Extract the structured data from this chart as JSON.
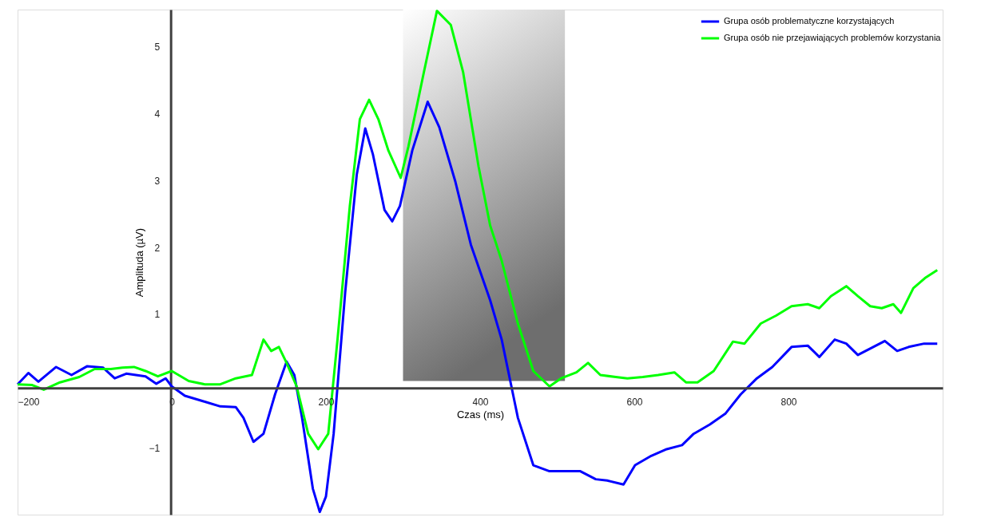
{
  "chart_data": {
    "type": "line",
    "xlabel": "Czas (ms)",
    "ylabel": "Amplituda (µV)",
    "xlim": [
      -200,
      1000
    ],
    "ylim": [
      -2.0,
      5.56
    ],
    "xticks": [
      -200,
      0,
      200,
      400,
      600,
      800
    ],
    "yticks": [
      -1,
      1,
      2,
      3,
      4,
      5
    ],
    "grid": false,
    "legend": "top right",
    "line_style": "solid",
    "marker": "none",
    "bands": [
      {
        "axis": "x",
        "from": 300,
        "to": 510,
        "color": "#6e6e6e"
      }
    ],
    "series": [
      {
        "name": "Grupa osób problematyczne korzystających",
        "color": "#0000ff",
        "x": [
          -200,
          -186,
          -173,
          -150,
          -130,
          -110,
          -89,
          -74,
          -59,
          -34,
          -20,
          -8,
          0,
          17,
          43,
          63,
          83,
          93,
          106,
          119,
          134,
          149,
          159,
          169,
          183,
          192,
          200,
          210,
          225,
          240,
          251,
          261,
          276,
          286,
          296,
          312,
          332,
          347,
          368,
          388,
          413,
          428,
          449,
          469,
          490,
          510,
          530,
          550,
          565,
          586,
          601,
          622,
          642,
          662,
          677,
          698,
          718,
          738,
          759,
          779,
          804,
          825,
          840,
          860,
          875,
          890,
          910,
          925,
          941,
          956,
          976,
          993
        ],
        "values": [
          -0.05,
          0.12,
          -0.01,
          0.21,
          0.09,
          0.22,
          0.2,
          0.04,
          0.11,
          0.07,
          -0.04,
          0.04,
          -0.08,
          -0.22,
          -0.31,
          -0.38,
          -0.39,
          -0.55,
          -0.91,
          -0.79,
          -0.2,
          0.29,
          0.09,
          -0.55,
          -1.61,
          -1.96,
          -1.73,
          -0.79,
          1.33,
          3.09,
          3.78,
          3.39,
          2.56,
          2.39,
          2.62,
          3.45,
          4.18,
          3.8,
          2.98,
          2.04,
          1.21,
          0.62,
          -0.55,
          -1.26,
          -1.35,
          -1.35,
          -1.35,
          -1.47,
          -1.49,
          -1.55,
          -1.26,
          -1.12,
          -1.02,
          -0.96,
          -0.79,
          -0.65,
          -0.49,
          -0.2,
          0.04,
          0.21,
          0.51,
          0.53,
          0.36,
          0.62,
          0.56,
          0.39,
          0.51,
          0.6,
          0.45,
          0.51,
          0.56,
          0.56
        ]
      },
      {
        "name": "Grupa osób nie przejawiających problemów korzystania",
        "color": "#00ff00",
        "x": [
          -200,
          -181,
          -166,
          -145,
          -120,
          -100,
          -79,
          -64,
          -49,
          -34,
          -18,
          0,
          22,
          43,
          63,
          83,
          104,
          119,
          129,
          139,
          149,
          162,
          177,
          190,
          203,
          215,
          231,
          244,
          256,
          268,
          281,
          297,
          307,
          327,
          344,
          362,
          378,
          398,
          413,
          428,
          449,
          469,
          490,
          505,
          525,
          540,
          556,
          576,
          591,
          611,
          631,
          652,
          667,
          682,
          703,
          728,
          743,
          764,
          784,
          804,
          825,
          840,
          855,
          875,
          890,
          906,
          921,
          936,
          946,
          962,
          977,
          993
        ],
        "values": [
          -0.05,
          -0.06,
          -0.13,
          -0.02,
          0.06,
          0.18,
          0.18,
          0.2,
          0.21,
          0.15,
          0.07,
          0.15,
          0,
          -0.05,
          -0.05,
          0.04,
          0.09,
          0.62,
          0.45,
          0.51,
          0.27,
          -0.08,
          -0.79,
          -1.02,
          -0.79,
          0.62,
          2.62,
          3.92,
          4.21,
          3.92,
          3.45,
          3.04,
          3.51,
          4.62,
          5.54,
          5.33,
          4.62,
          3.21,
          2.33,
          1.8,
          0.86,
          0.15,
          -0.08,
          0.04,
          0.13,
          0.27,
          0.09,
          0.06,
          0.04,
          0.06,
          0.09,
          0.13,
          -0.02,
          -0.02,
          0.15,
          0.59,
          0.56,
          0.86,
          0.98,
          1.12,
          1.15,
          1.09,
          1.27,
          1.42,
          1.27,
          1.12,
          1.09,
          1.15,
          1.02,
          1.39,
          1.54,
          1.66
        ]
      }
    ]
  }
}
